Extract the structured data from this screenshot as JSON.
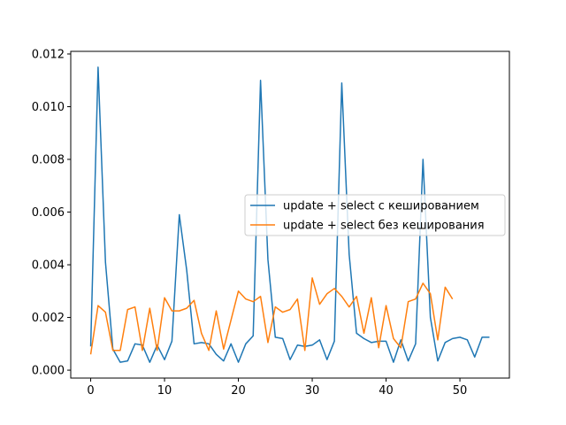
{
  "chart_data": {
    "type": "line",
    "title": "",
    "xlabel": "",
    "ylabel": "",
    "xlim": [
      -2.7,
      56.7
    ],
    "ylim": [
      -0.0003,
      0.0121
    ],
    "x_ticks": [
      0,
      10,
      20,
      30,
      40,
      50
    ],
    "x_tick_labels": [
      "0",
      "10",
      "20",
      "30",
      "40",
      "50"
    ],
    "y_ticks": [
      0.0,
      0.002,
      0.004,
      0.006,
      0.008,
      0.01,
      0.012
    ],
    "y_tick_labels": [
      "0.000",
      "0.002",
      "0.004",
      "0.006",
      "0.008",
      "0.010",
      "0.012"
    ],
    "grid": false,
    "legend_position": "center-right",
    "series": [
      {
        "name": "update + select с кешированием",
        "color": "#1f77b4",
        "values": [
          0.0009,
          0.0115,
          0.0041,
          0.0008,
          0.0003,
          0.00035,
          0.001,
          0.00095,
          0.0003,
          0.00095,
          0.0004,
          0.0011,
          0.0059,
          0.0038,
          0.001,
          0.00105,
          0.001,
          0.0006,
          0.00035,
          0.001,
          0.0003,
          0.001,
          0.0013,
          0.011,
          0.0042,
          0.00125,
          0.0012,
          0.0004,
          0.00095,
          0.0009,
          0.00095,
          0.00115,
          0.0004,
          0.0011,
          0.0109,
          0.0044,
          0.0014,
          0.0012,
          0.00105,
          0.0011,
          0.0011,
          0.0003,
          0.00115,
          0.00035,
          0.001,
          0.008,
          0.002,
          0.00035,
          0.00105,
          0.0012,
          0.00125,
          0.00115,
          0.0005,
          0.00125,
          0.00125
        ]
      },
      {
        "name": "update + select без кеширования",
        "color": "#ff7f0e",
        "values": [
          0.0006,
          0.00245,
          0.0022,
          0.00075,
          0.00075,
          0.0023,
          0.0024,
          0.00075,
          0.00235,
          0.00075,
          0.00275,
          0.00225,
          0.00225,
          0.00235,
          0.00265,
          0.0014,
          0.00075,
          0.00225,
          0.0008,
          0.0019,
          0.003,
          0.0027,
          0.0026,
          0.0028,
          0.00105,
          0.0024,
          0.0022,
          0.0023,
          0.0027,
          0.00075,
          0.0035,
          0.0025,
          0.0029,
          0.0031,
          0.0028,
          0.0024,
          0.0028,
          0.0014,
          0.00275,
          0.00085,
          0.00245,
          0.0012,
          0.00085,
          0.0026,
          0.0027,
          0.0033,
          0.0029,
          0.00115,
          0.00315,
          0.0027
        ]
      }
    ]
  }
}
